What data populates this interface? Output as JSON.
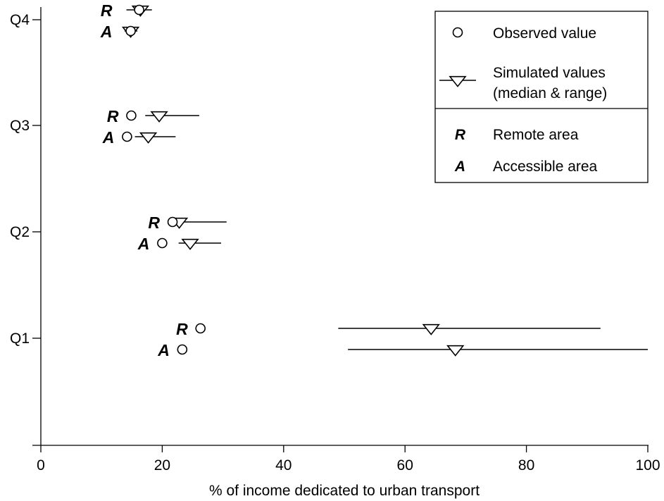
{
  "chart_data": {
    "type": "scatter",
    "title": "",
    "xlabel": "% of income dedicated to urban transport",
    "ylabel": "",
    "xlim": [
      0,
      100
    ],
    "x_ticks": [
      0,
      20,
      40,
      60,
      80,
      100
    ],
    "categories": [
      "Q1",
      "Q2",
      "Q3",
      "Q4"
    ],
    "area_labels": {
      "remote": "R",
      "accessible": "A"
    },
    "series": [
      {
        "name": "Observed value",
        "marker": "circle",
        "points": [
          {
            "quartile": "Q1",
            "area": "R",
            "x": 26.3
          },
          {
            "quartile": "Q1",
            "area": "A",
            "x": 23.3
          },
          {
            "quartile": "Q2",
            "area": "R",
            "x": 21.7
          },
          {
            "quartile": "Q2",
            "area": "A",
            "x": 20.0
          },
          {
            "quartile": "Q3",
            "area": "R",
            "x": 14.9
          },
          {
            "quartile": "Q3",
            "area": "A",
            "x": 14.2
          },
          {
            "quartile": "Q4",
            "area": "R",
            "x": 16.2
          },
          {
            "quartile": "Q4",
            "area": "A",
            "x": 14.8
          }
        ]
      },
      {
        "name": "Simulated values (median & range)",
        "marker": "triangle-down",
        "points": [
          {
            "quartile": "Q1",
            "area": "R",
            "median": 64.3,
            "min": 49.0,
            "max": 92.2
          },
          {
            "quartile": "Q1",
            "area": "A",
            "median": 68.3,
            "min": 50.6,
            "max": 100.0
          },
          {
            "quartile": "Q2",
            "area": "R",
            "median": 22.8,
            "min": 21.4,
            "max": 30.6
          },
          {
            "quartile": "Q2",
            "area": "A",
            "median": 24.6,
            "min": 22.7,
            "max": 29.7
          },
          {
            "quartile": "Q3",
            "area": "R",
            "median": 19.5,
            "min": 17.2,
            "max": 26.1
          },
          {
            "quartile": "Q3",
            "area": "A",
            "median": 17.7,
            "min": 15.5,
            "max": 22.2
          },
          {
            "quartile": "Q4",
            "area": "R",
            "median": 16.4,
            "min": 14.1,
            "max": 18.3
          },
          {
            "quartile": "Q4",
            "area": "A",
            "median": 14.8,
            "min": 13.8,
            "max": 15.9
          }
        ]
      }
    ],
    "legend": {
      "position": "top-right",
      "items": [
        {
          "symbol": "circle",
          "label": "Observed value"
        },
        {
          "symbol": "triangle-range",
          "label_lines": [
            "Simulated values",
            "(median & range)"
          ]
        },
        {
          "symbol": "R",
          "label": "Remote area"
        },
        {
          "symbol": "A",
          "label": "Accessible area"
        }
      ]
    }
  }
}
